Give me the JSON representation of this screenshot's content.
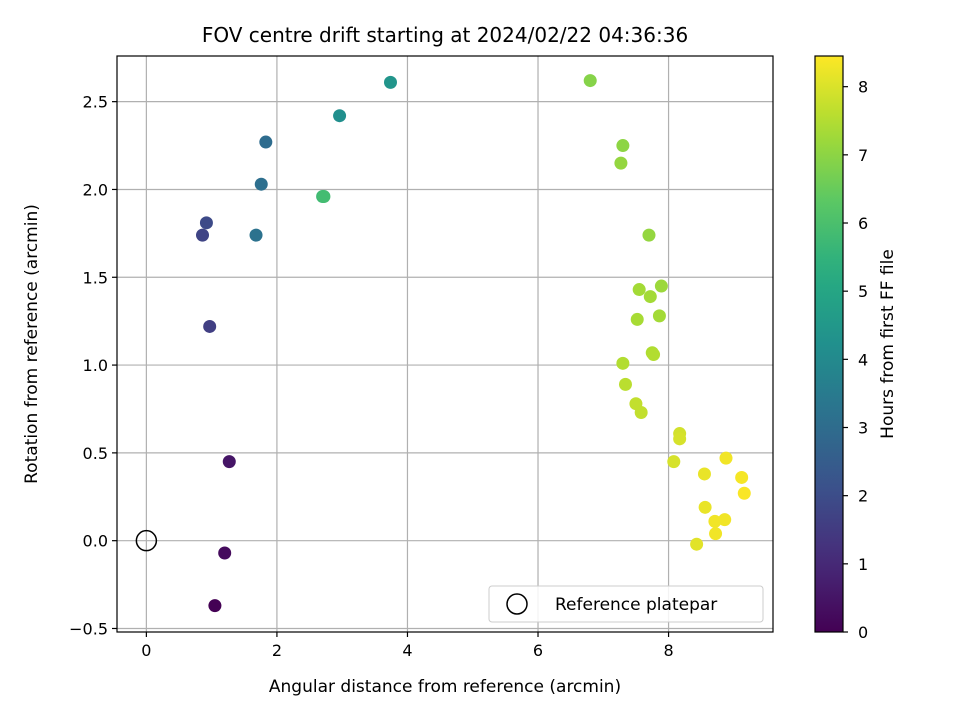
{
  "chart_data": {
    "type": "scatter",
    "title": "FOV centre drift starting at 2024/02/22 04:36:36",
    "xlabel": "Angular distance from reference (arcmin)",
    "ylabel": "Rotation from reference (arcmin)",
    "xlim": [
      -0.45,
      9.6
    ],
    "ylim": [
      -0.52,
      2.76
    ],
    "xticks": [
      0,
      2,
      4,
      6,
      8
    ],
    "xtick_labels": [
      "0",
      "2",
      "4",
      "6",
      "8"
    ],
    "yticks": [
      -0.5,
      0.0,
      0.5,
      1.0,
      1.5,
      2.0,
      2.5
    ],
    "ytick_labels": [
      "−0.5",
      "0.0",
      "0.5",
      "1.0",
      "1.5",
      "2.0",
      "2.5"
    ],
    "grid": true,
    "legend": {
      "position": "lower right",
      "entries": [
        {
          "label": "Reference platepar",
          "marker": "open-circle"
        }
      ]
    },
    "reference": {
      "x": 0,
      "y": 0
    },
    "colorbar": {
      "label": "Hours from first FF file",
      "colormap": "viridis",
      "range": [
        0,
        8.45
      ],
      "ticks": [
        0,
        1,
        2,
        3,
        4,
        5,
        6,
        7,
        8
      ],
      "tick_labels": [
        "0",
        "1",
        "2",
        "3",
        "4",
        "5",
        "6",
        "7",
        "8"
      ]
    },
    "points": [
      {
        "x": 1.05,
        "y": -0.37,
        "c": 0.0
      },
      {
        "x": 1.2,
        "y": -0.07,
        "c": 0.25
      },
      {
        "x": 1.27,
        "y": 0.45,
        "c": 0.5
      },
      {
        "x": 0.97,
        "y": 1.22,
        "c": 1.6
      },
      {
        "x": 0.86,
        "y": 1.74,
        "c": 1.75
      },
      {
        "x": 0.92,
        "y": 1.81,
        "c": 1.9
      },
      {
        "x": 1.68,
        "y": 1.74,
        "c": 3.2
      },
      {
        "x": 1.76,
        "y": 2.03,
        "c": 3.1
      },
      {
        "x": 1.83,
        "y": 2.27,
        "c": 3.0
      },
      {
        "x": 2.96,
        "y": 2.42,
        "c": 4.2
      },
      {
        "x": 3.74,
        "y": 2.61,
        "c": 4.4
      },
      {
        "x": 2.7,
        "y": 1.96,
        "c": 5.75
      },
      {
        "x": 2.72,
        "y": 1.96,
        "c": 5.85
      },
      {
        "x": 6.8,
        "y": 2.62,
        "c": 6.9
      },
      {
        "x": 7.27,
        "y": 2.15,
        "c": 7.1
      },
      {
        "x": 7.3,
        "y": 2.25,
        "c": 7.0
      },
      {
        "x": 7.7,
        "y": 1.74,
        "c": 7.1
      },
      {
        "x": 7.55,
        "y": 1.43,
        "c": 7.3
      },
      {
        "x": 7.72,
        "y": 1.39,
        "c": 7.3
      },
      {
        "x": 7.89,
        "y": 1.45,
        "c": 7.2
      },
      {
        "x": 7.52,
        "y": 1.26,
        "c": 7.35
      },
      {
        "x": 7.86,
        "y": 1.28,
        "c": 7.3
      },
      {
        "x": 7.75,
        "y": 1.07,
        "c": 7.45
      },
      {
        "x": 7.77,
        "y": 1.06,
        "c": 7.5
      },
      {
        "x": 7.3,
        "y": 1.01,
        "c": 7.5
      },
      {
        "x": 7.34,
        "y": 0.89,
        "c": 7.6
      },
      {
        "x": 7.5,
        "y": 0.78,
        "c": 7.7
      },
      {
        "x": 7.58,
        "y": 0.73,
        "c": 7.7
      },
      {
        "x": 8.17,
        "y": 0.61,
        "c": 7.9
      },
      {
        "x": 8.17,
        "y": 0.58,
        "c": 7.95
      },
      {
        "x": 8.08,
        "y": 0.45,
        "c": 7.95
      },
      {
        "x": 8.55,
        "y": 0.38,
        "c": 8.2
      },
      {
        "x": 8.88,
        "y": 0.47,
        "c": 8.3
      },
      {
        "x": 9.12,
        "y": 0.36,
        "c": 8.35
      },
      {
        "x": 9.16,
        "y": 0.27,
        "c": 8.4
      },
      {
        "x": 8.56,
        "y": 0.19,
        "c": 8.2
      },
      {
        "x": 8.71,
        "y": 0.11,
        "c": 8.3
      },
      {
        "x": 8.86,
        "y": 0.12,
        "c": 8.3
      },
      {
        "x": 8.72,
        "y": 0.04,
        "c": 8.3
      },
      {
        "x": 8.43,
        "y": -0.02,
        "c": 8.1
      }
    ]
  }
}
